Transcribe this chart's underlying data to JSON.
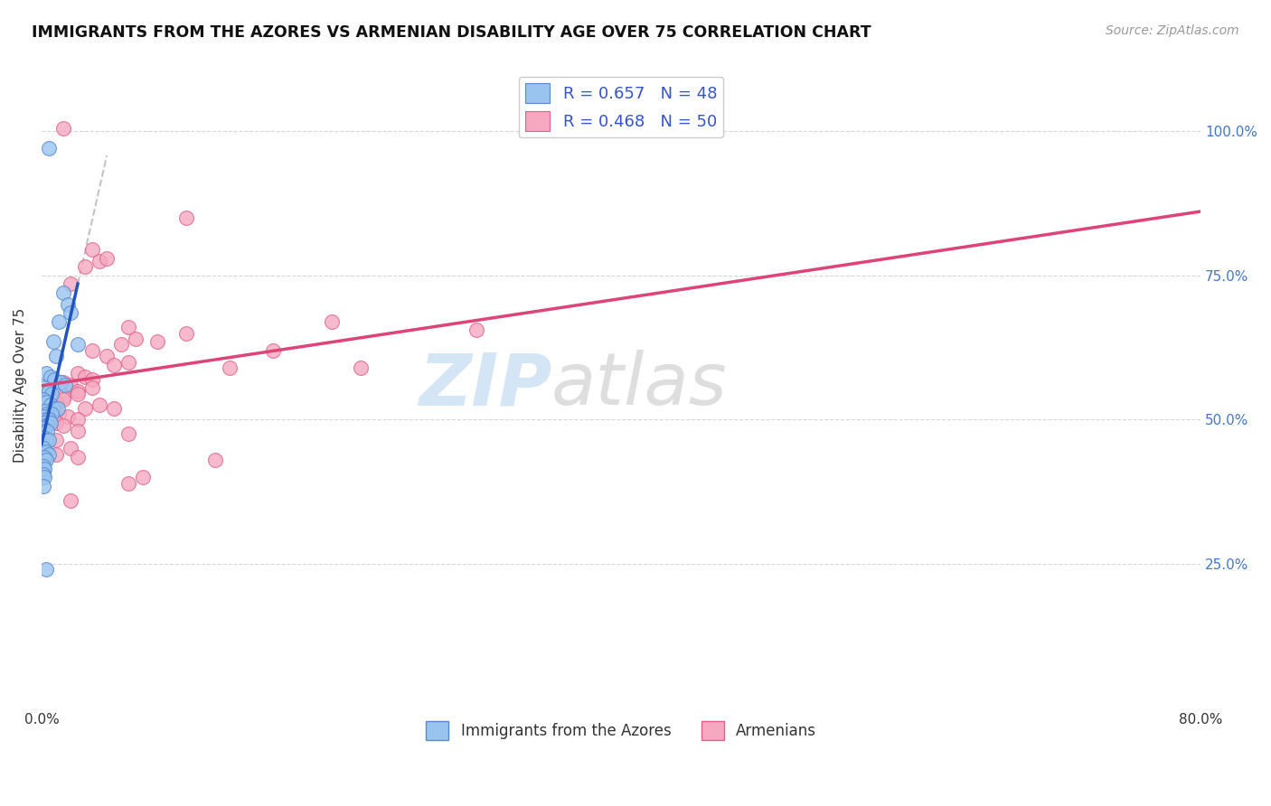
{
  "title": "IMMIGRANTS FROM THE AZORES VS ARMENIAN DISABILITY AGE OVER 75 CORRELATION CHART",
  "source": "Source: ZipAtlas.com",
  "ylabel": "Disability Age Over 75",
  "x_tick_labels": [
    "0.0%",
    "",
    "",
    "",
    "",
    "",
    "",
    "",
    "80.0%"
  ],
  "x_tick_vals": [
    0,
    10,
    20,
    30,
    40,
    50,
    60,
    70,
    80
  ],
  "y_tick_labels": [
    "25.0%",
    "50.0%",
    "75.0%",
    "100.0%"
  ],
  "y_tick_vals": [
    25,
    50,
    75,
    100
  ],
  "xlim": [
    0,
    80
  ],
  "ylim": [
    0,
    112
  ],
  "legend_entries": [
    {
      "label": "R = 0.657   N = 48",
      "color": "#aac9f0"
    },
    {
      "label": "R = 0.468   N = 50",
      "color": "#f5b0c8"
    }
  ],
  "legend_label_bottom": [
    "Immigrants from the Azores",
    "Armenians"
  ],
  "blue_scatter": [
    [
      0.5,
      97.0
    ],
    [
      1.5,
      72.0
    ],
    [
      1.8,
      70.0
    ],
    [
      2.0,
      68.5
    ],
    [
      1.2,
      67.0
    ],
    [
      0.8,
      63.5
    ],
    [
      2.5,
      63.0
    ],
    [
      1.0,
      61.0
    ],
    [
      0.3,
      58.0
    ],
    [
      0.6,
      57.5
    ],
    [
      0.9,
      57.0
    ],
    [
      1.3,
      56.5
    ],
    [
      1.6,
      56.0
    ],
    [
      0.2,
      55.5
    ],
    [
      0.5,
      55.0
    ],
    [
      0.7,
      54.5
    ],
    [
      0.1,
      53.5
    ],
    [
      0.3,
      53.0
    ],
    [
      0.6,
      52.5
    ],
    [
      0.8,
      52.0
    ],
    [
      1.1,
      52.0
    ],
    [
      0.2,
      51.5
    ],
    [
      0.4,
      51.0
    ],
    [
      0.7,
      51.0
    ],
    [
      0.1,
      50.5
    ],
    [
      0.3,
      50.0
    ],
    [
      0.5,
      50.0
    ],
    [
      0.1,
      49.5
    ],
    [
      0.25,
      49.0
    ],
    [
      0.4,
      49.0
    ],
    [
      0.6,
      49.5
    ],
    [
      0.1,
      48.5
    ],
    [
      0.2,
      48.0
    ],
    [
      0.4,
      48.0
    ],
    [
      0.1,
      47.0
    ],
    [
      0.3,
      46.5
    ],
    [
      0.5,
      46.5
    ],
    [
      0.1,
      45.0
    ],
    [
      0.3,
      44.5
    ],
    [
      0.5,
      44.0
    ],
    [
      0.2,
      43.5
    ],
    [
      0.3,
      43.0
    ],
    [
      0.1,
      42.0
    ],
    [
      0.2,
      41.5
    ],
    [
      0.1,
      40.5
    ],
    [
      0.2,
      40.0
    ],
    [
      0.1,
      38.5
    ],
    [
      0.3,
      24.0
    ]
  ],
  "pink_scatter": [
    [
      1.5,
      100.5
    ],
    [
      10.0,
      85.0
    ],
    [
      3.5,
      79.5
    ],
    [
      4.0,
      77.5
    ],
    [
      4.5,
      78.0
    ],
    [
      3.0,
      76.5
    ],
    [
      2.0,
      73.5
    ],
    [
      20.0,
      67.0
    ],
    [
      6.0,
      66.0
    ],
    [
      30.0,
      65.5
    ],
    [
      10.0,
      65.0
    ],
    [
      6.5,
      64.0
    ],
    [
      5.5,
      63.0
    ],
    [
      8.0,
      63.5
    ],
    [
      3.5,
      62.0
    ],
    [
      4.5,
      61.0
    ],
    [
      16.0,
      62.0
    ],
    [
      5.0,
      59.5
    ],
    [
      6.0,
      60.0
    ],
    [
      13.0,
      59.0
    ],
    [
      22.0,
      59.0
    ],
    [
      2.5,
      58.0
    ],
    [
      3.0,
      57.5
    ],
    [
      3.5,
      57.0
    ],
    [
      1.5,
      56.5
    ],
    [
      2.0,
      56.0
    ],
    [
      2.5,
      55.0
    ],
    [
      3.5,
      55.5
    ],
    [
      1.5,
      54.0
    ],
    [
      2.5,
      54.5
    ],
    [
      1.0,
      53.0
    ],
    [
      1.5,
      53.5
    ],
    [
      3.0,
      52.0
    ],
    [
      4.0,
      52.5
    ],
    [
      5.0,
      52.0
    ],
    [
      1.2,
      51.0
    ],
    [
      1.8,
      50.5
    ],
    [
      2.5,
      50.0
    ],
    [
      1.0,
      49.5
    ],
    [
      1.5,
      49.0
    ],
    [
      2.5,
      48.0
    ],
    [
      6.0,
      47.5
    ],
    [
      1.0,
      46.5
    ],
    [
      2.0,
      45.0
    ],
    [
      1.0,
      44.0
    ],
    [
      2.5,
      43.5
    ],
    [
      12.0,
      43.0
    ],
    [
      7.0,
      40.0
    ],
    [
      6.0,
      39.0
    ],
    [
      2.0,
      36.0
    ]
  ],
  "blue_line_color": "#2255bb",
  "pink_line_color": "#dd4477",
  "blue_scatter_color": "#99c4f0",
  "pink_scatter_color": "#f5a8c0",
  "blue_edge_color": "#5588cc",
  "pink_edge_color": "#e0608a",
  "watermark_color": "#d0e4f7",
  "watermark_text": "ZIPatlas",
  "background_color": "#ffffff",
  "grid_color": "#cccccc"
}
